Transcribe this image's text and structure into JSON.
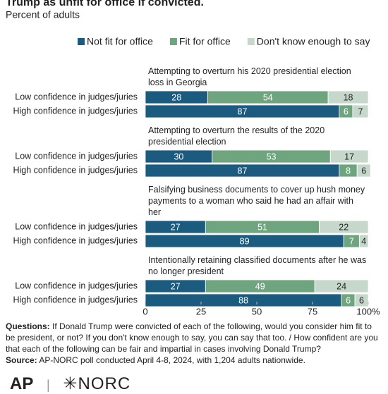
{
  "chart_data": {
    "type": "stacked-bar",
    "title": "Trump as unfit for office if convicted.",
    "subtitle": "Percent of adults",
    "categories": [
      "Low confidence in judges/juries",
      "High confidence in judges/juries",
      "Low confidence in judges/juries",
      "High confidence in judges/juries",
      "Low confidence in judges/juries",
      "High confidence in judges/juries",
      "Low confidence in judges/juries",
      "High confidence in judges/juries"
    ],
    "group_titles": [
      "Attempting to overturn his 2020 presidential election loss in Georgia",
      "Attempting to overturn the results of the 2020 presidential election",
      "Falsifying business documents to cover up hush money payments to a woman who said he had an affair with her",
      "Intentionally retaining classified documents after he was no longer president"
    ],
    "series": [
      {
        "name": "Not fit for office",
        "color": "#1b5b7f",
        "text_color": "#ffffff",
        "values": [
          28,
          87,
          30,
          87,
          27,
          89,
          27,
          88
        ]
      },
      {
        "name": "Fit for office",
        "color": "#6ea57f",
        "text_color": "#ffffff",
        "values": [
          54,
          6,
          53,
          8,
          51,
          7,
          49,
          6
        ]
      },
      {
        "name": "Don't know enough to say",
        "color": "#c6d8cb",
        "text_color": "#222222",
        "values": [
          18,
          7,
          17,
          6,
          22,
          4,
          24,
          6
        ]
      }
    ],
    "xlim": [
      0,
      100
    ],
    "xticks": [
      0,
      25,
      50,
      75,
      {
        "value": 100,
        "label": "100%"
      }
    ],
    "grid": false,
    "legend": "top",
    "questions_label": "Questions:",
    "questions": "If Donald Trump were convicted of each of the following, would you consider him fit to be president, or not? If you don't know enough to say, you can say that too. / How confident are you that each of the following can be fair and impartial in cases involving Donald Trump?",
    "source_label": "Source:",
    "source": "AP-NORC poll conducted April 4-8, 2024, with 1,204 adults nationwide.",
    "logo_left": "AP",
    "logo_right": "NORC"
  }
}
